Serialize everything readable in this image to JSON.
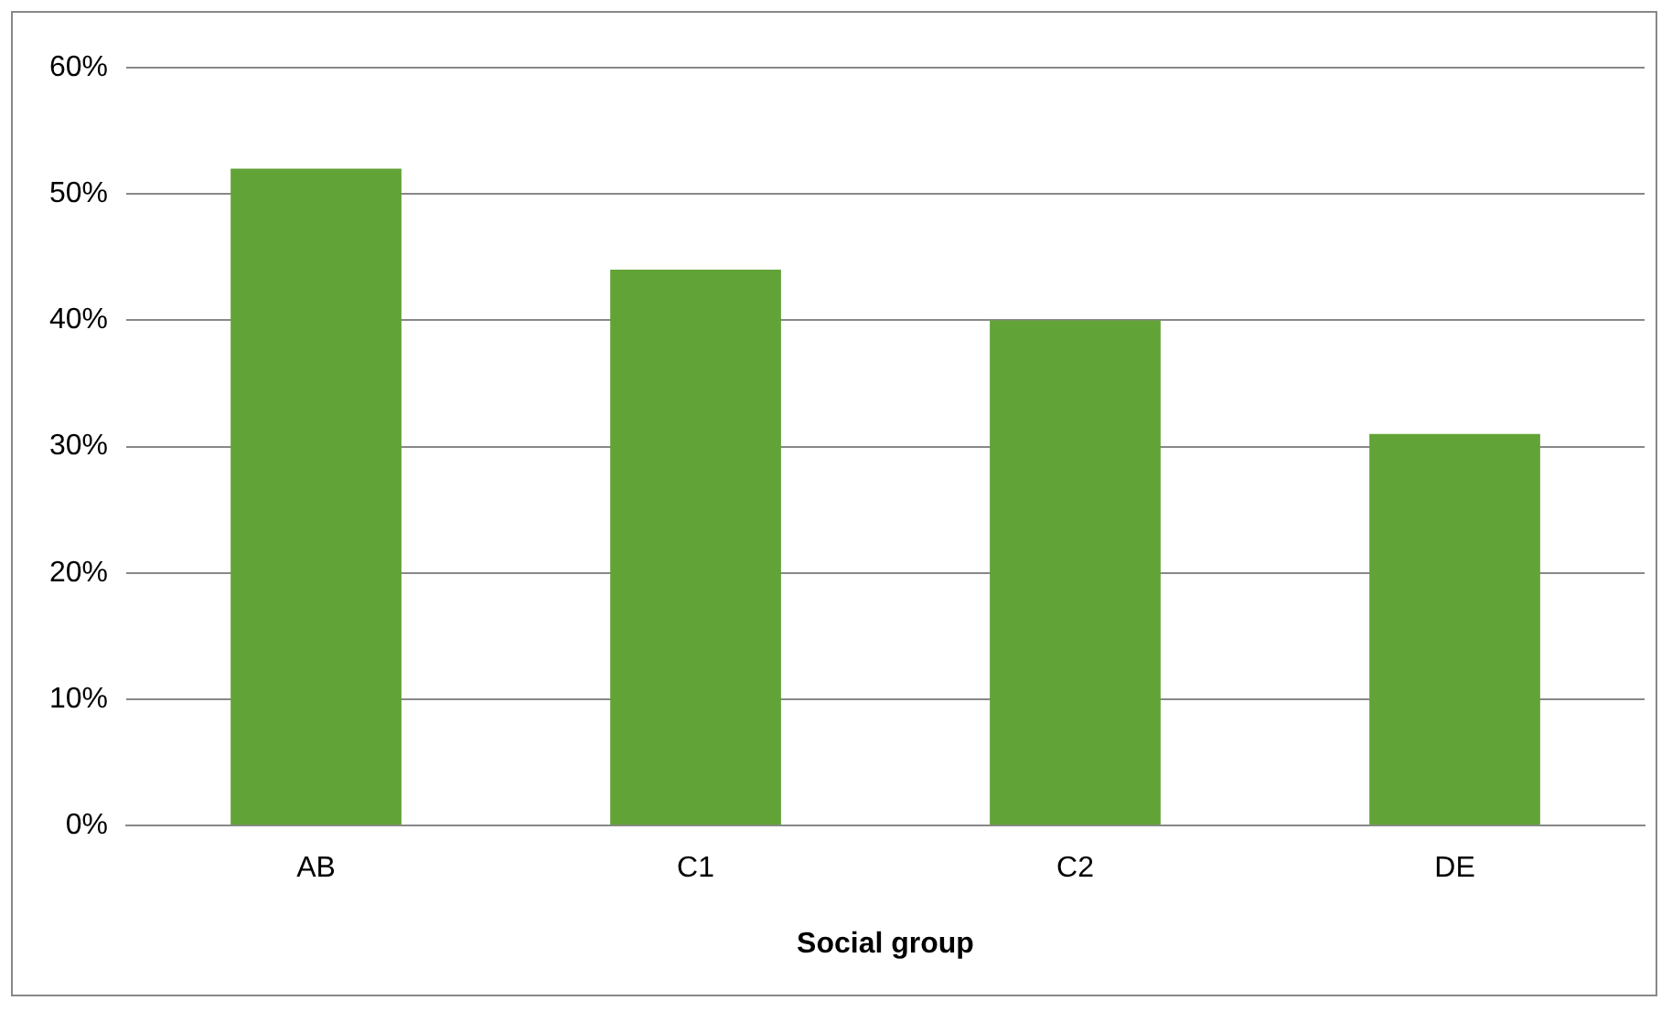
{
  "chart_data": {
    "type": "bar",
    "xlabel": "Social group",
    "categories": [
      "AB",
      "C1",
      "C2",
      "DE"
    ],
    "values": [
      52,
      44,
      40,
      31
    ],
    "color": "#62a337",
    "ylim": [
      0,
      60
    ],
    "yticks": [
      {
        "value": 0,
        "label": "0%"
      },
      {
        "value": 10,
        "label": "10%"
      },
      {
        "value": 20,
        "label": "20%"
      },
      {
        "value": 30,
        "label": "30%"
      },
      {
        "value": 40,
        "label": "40%"
      },
      {
        "value": 50,
        "label": "50%"
      },
      {
        "value": 60,
        "label": "60%"
      }
    ],
    "grid": "y"
  }
}
